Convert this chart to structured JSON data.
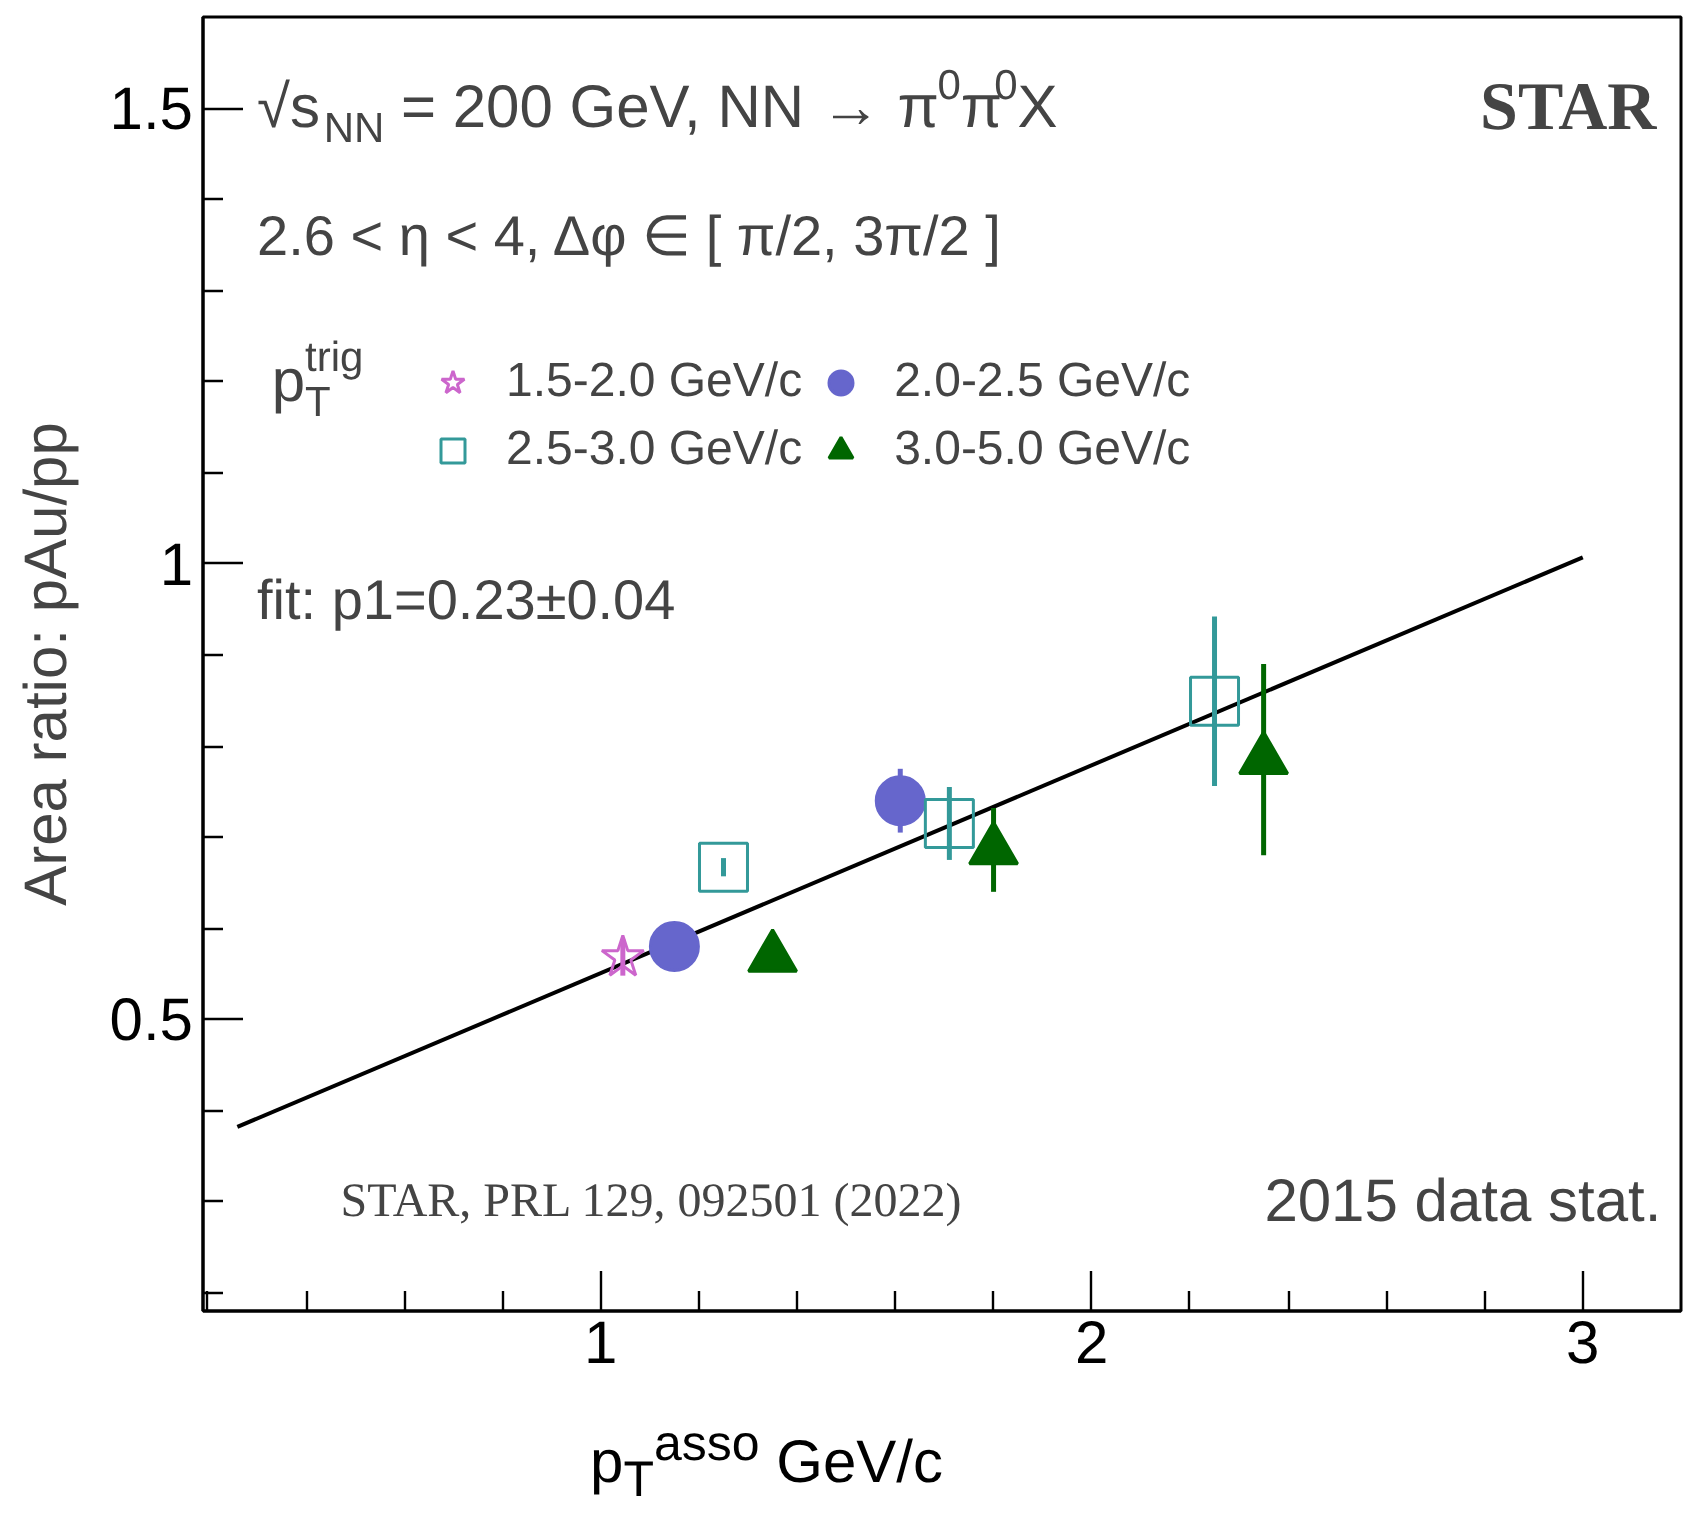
{
  "chart_data": {
    "type": "scatter",
    "xlabel": "p$_{T}$$^{asso}$ GeV/c",
    "ylabel": "Area ratio: pAu/pp",
    "legend_title": "p$^{trig}$$_{T}$",
    "legend": "top",
    "grid": false,
    "xlim": [
      0.19,
      3.2
    ],
    "ylim": [
      0.18,
      1.6
    ],
    "xticks": [
      {
        "value": 0.2,
        "label": null
      },
      {
        "value": 0.4,
        "label": null
      },
      {
        "value": 0.6,
        "label": null
      },
      {
        "value": 0.8,
        "label": null
      },
      1,
      {
        "value": 1.2,
        "label": null
      },
      {
        "value": 1.4,
        "label": null
      },
      {
        "value": 1.6,
        "label": null
      },
      {
        "value": 1.8,
        "label": null
      },
      2,
      {
        "value": 2.2,
        "label": null
      },
      {
        "value": 2.4,
        "label": null
      },
      {
        "value": 2.6,
        "label": null
      },
      {
        "value": 2.8,
        "label": null
      },
      3
    ],
    "yticks": [
      {
        "value": 0.2,
        "label": null
      },
      {
        "value": 0.3,
        "label": null
      },
      {
        "value": 0.4,
        "label": null
      },
      0.5,
      {
        "value": 0.6,
        "label": null
      },
      {
        "value": 0.7,
        "label": null
      },
      {
        "value": 0.8,
        "label": null
      },
      {
        "value": 0.9,
        "label": null
      },
      1,
      {
        "value": 1.1,
        "label": null
      },
      {
        "value": 1.2,
        "label": null
      },
      {
        "value": 1.3,
        "label": null
      },
      {
        "value": 1.4,
        "label": null
      },
      1.5
    ],
    "series": [
      {
        "type": "line",
        "x": [
          0.26,
          3.0
        ],
        "values": [
          0.382,
          1.007
        ],
        "color": "#000000",
        "marker": "none",
        "line_style": "solid"
      },
      {
        "name": "1.5-2.0 GeV/c",
        "color": "#cc66cc",
        "marker": "star",
        "x": [
          1.045
        ],
        "values": [
          0.568
        ],
        "errors": [
          0.02
        ]
      },
      {
        "name": "2.0-2.5 GeV/c",
        "color": "#6666cc",
        "marker": "circle",
        "x": [
          1.15,
          1.61
        ],
        "values": [
          0.58,
          0.74
        ],
        "errors": [
          0.01,
          0.035
        ]
      },
      {
        "name": "2.5-3.0 GeV/c",
        "color": "#339999",
        "marker": "square",
        "x": [
          1.25,
          1.71,
          2.25
        ],
        "values": [
          0.667,
          0.715,
          0.849
        ],
        "errors": [
          0.01,
          0.04,
          0.093
        ]
      },
      {
        "name": "3.0-5.0 GeV/c",
        "color": "#006600",
        "marker": "triangle",
        "x": [
          1.35,
          1.8,
          2.35
        ],
        "values": [
          0.568,
          0.686,
          0.785
        ],
        "errors": [
          0.01,
          0.046,
          0.105
        ]
      }
    ],
    "annotations": [
      "√s$_{NN}$ = 200 GeV, NN → π$^{0}$π$^{0}$X",
      "STAR",
      "2.6 < η < 4, Δφ ∈ [ π/2, 3π/2 ]",
      "fit: p1=0.23±0.04",
      "STAR, PRL 129, 092501 (2022)",
      "2015 data stat."
    ]
  }
}
